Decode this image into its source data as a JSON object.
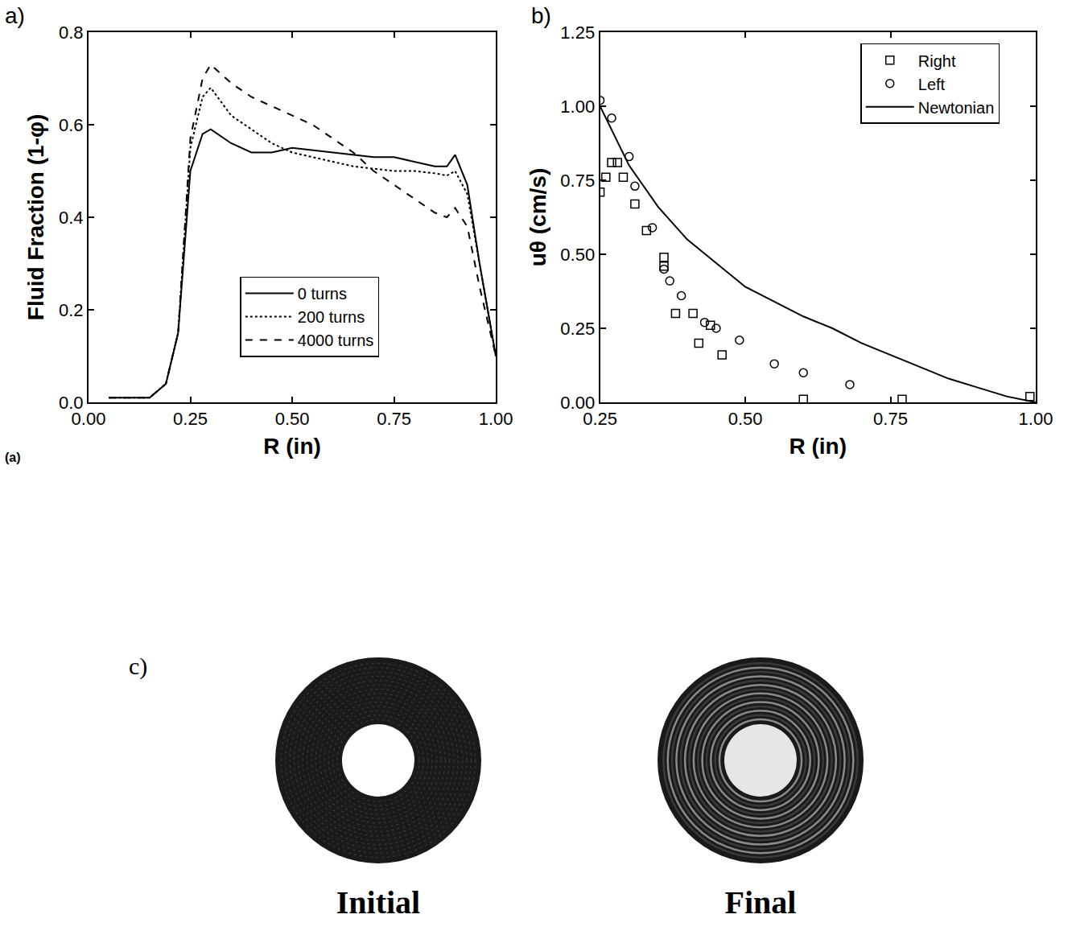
{
  "chart_data": [
    {
      "type": "line",
      "panel_label": "a)",
      "caption": "(a)",
      "x_label": "R (in)",
      "y_label": "Fluid Fraction (1-φ)",
      "xlim": [
        0,
        1
      ],
      "ylim": [
        0,
        0.8
      ],
      "xticks": [
        {
          "value": 0,
          "label": "0.00"
        },
        0.25,
        {
          "value": 0.5,
          "label": "0.50"
        },
        0.75,
        {
          "value": 1,
          "label": "1.00"
        }
      ],
      "yticks": [
        {
          "value": 0,
          "label": "0.0"
        },
        0.2,
        0.4,
        0.6,
        0.8
      ],
      "grid": false,
      "legend": "lower center",
      "series": [
        {
          "name": "0 turns",
          "color": "#000000",
          "line_style": "solid",
          "x": [
            0.05,
            0.15,
            0.19,
            0.22,
            0.25,
            0.28,
            0.3,
            0.35,
            0.4,
            0.45,
            0.5,
            0.55,
            0.6,
            0.65,
            0.7,
            0.75,
            0.8,
            0.85,
            0.88,
            0.9,
            0.93,
            0.96,
            1.0
          ],
          "values": [
            0.01,
            0.01,
            0.04,
            0.15,
            0.5,
            0.58,
            0.59,
            0.56,
            0.54,
            0.54,
            0.55,
            0.545,
            0.54,
            0.535,
            0.53,
            0.53,
            0.52,
            0.51,
            0.51,
            0.535,
            0.47,
            0.3,
            0.1
          ]
        },
        {
          "name": "200 turns",
          "color": "#000000",
          "line_style": "dot",
          "x": [
            0.05,
            0.15,
            0.19,
            0.22,
            0.25,
            0.28,
            0.3,
            0.35,
            0.4,
            0.45,
            0.5,
            0.55,
            0.6,
            0.65,
            0.7,
            0.75,
            0.8,
            0.85,
            0.88,
            0.9,
            0.93,
            0.96,
            1.0
          ],
          "values": [
            0.01,
            0.01,
            0.04,
            0.15,
            0.55,
            0.66,
            0.68,
            0.62,
            0.59,
            0.56,
            0.54,
            0.53,
            0.52,
            0.51,
            0.505,
            0.5,
            0.5,
            0.495,
            0.49,
            0.5,
            0.45,
            0.3,
            0.1
          ]
        },
        {
          "name": "4000 turns",
          "color": "#000000",
          "line_style": "dash",
          "x": [
            0.05,
            0.15,
            0.19,
            0.22,
            0.25,
            0.28,
            0.3,
            0.35,
            0.4,
            0.45,
            0.5,
            0.55,
            0.6,
            0.65,
            0.7,
            0.75,
            0.8,
            0.85,
            0.88,
            0.9,
            0.93,
            0.96,
            1.0
          ],
          "values": [
            0.01,
            0.01,
            0.04,
            0.15,
            0.57,
            0.7,
            0.73,
            0.69,
            0.66,
            0.64,
            0.62,
            0.6,
            0.57,
            0.54,
            0.5,
            0.47,
            0.44,
            0.41,
            0.4,
            0.42,
            0.38,
            0.25,
            0.1
          ]
        }
      ]
    },
    {
      "type": "scatter",
      "panel_label": "b)",
      "x_label": "R (in)",
      "y_label": "uθ (cm/s)",
      "xlim": [
        0.25,
        1
      ],
      "ylim": [
        0,
        1.25
      ],
      "xticks": [
        0.25,
        {
          "value": 0.5,
          "label": "0.50"
        },
        0.75,
        {
          "value": 1,
          "label": "1.00"
        }
      ],
      "yticks": [
        {
          "value": 0,
          "label": "0.00"
        },
        0.25,
        {
          "value": 0.5,
          "label": "0.50"
        },
        0.75,
        {
          "value": 1,
          "label": "1.00"
        },
        1.25
      ],
      "grid": false,
      "legend": "upper right",
      "series": [
        {
          "name": "Right",
          "type": "scatter",
          "marker": "square",
          "color": "#000000",
          "x": [
            0.25,
            0.26,
            0.27,
            0.28,
            0.29,
            0.31,
            0.33,
            0.36,
            0.36,
            0.38,
            0.41,
            0.42,
            0.44,
            0.46,
            0.6,
            0.77,
            0.99
          ],
          "values": [
            0.71,
            0.76,
            0.81,
            0.81,
            0.76,
            0.67,
            0.58,
            0.49,
            0.46,
            0.3,
            0.3,
            0.2,
            0.26,
            0.16,
            0.01,
            0.01,
            0.02
          ]
        },
        {
          "name": "Left",
          "type": "scatter",
          "marker": "circle",
          "color": "#000000",
          "x": [
            0.25,
            0.27,
            0.3,
            0.31,
            0.34,
            0.36,
            0.37,
            0.39,
            0.43,
            0.45,
            0.49,
            0.55,
            0.6,
            0.68
          ],
          "values": [
            1.02,
            0.96,
            0.83,
            0.73,
            0.59,
            0.45,
            0.41,
            0.36,
            0.27,
            0.25,
            0.21,
            0.13,
            0.1,
            0.06
          ]
        },
        {
          "name": "Newtonian",
          "type": "line",
          "line_style": "solid",
          "color": "#000000",
          "x": [
            0.25,
            0.3,
            0.35,
            0.4,
            0.45,
            0.5,
            0.55,
            0.6,
            0.65,
            0.7,
            0.75,
            0.8,
            0.85,
            0.9,
            0.95,
            1.0
          ],
          "values": [
            1.0,
            0.8,
            0.66,
            0.55,
            0.47,
            0.39,
            0.34,
            0.29,
            0.25,
            0.2,
            0.16,
            0.12,
            0.08,
            0.05,
            0.02,
            0.0
          ]
        }
      ]
    }
  ],
  "images": {
    "panel_label": "c)",
    "panels": [
      "Initial",
      "Final"
    ]
  }
}
